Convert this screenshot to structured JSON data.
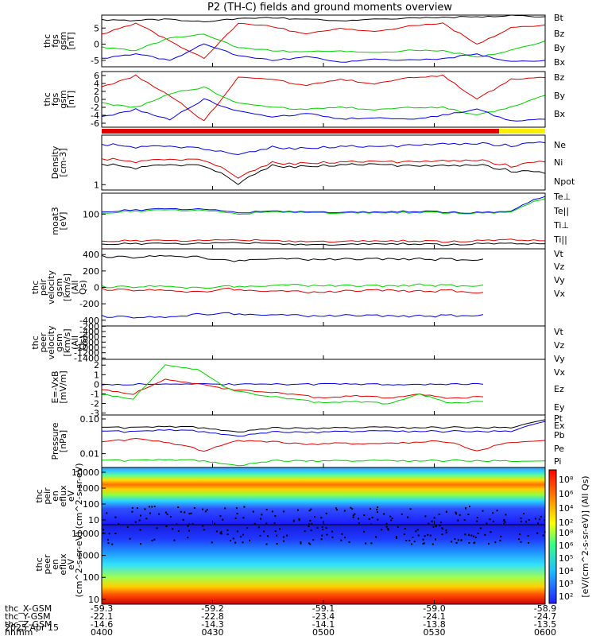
{
  "title": "P2 (TH-C) fields and ground moments overview",
  "x_ticks": [
    "0400",
    "0430",
    "0500",
    "0530",
    "0600"
  ],
  "ephemeris": [
    {
      "label": "thc_X-GSM",
      "values": [
        "-59.3",
        "-59.2",
        "-59.1",
        "-59.0",
        "-58.9"
      ]
    },
    {
      "label": "thc_Y-GSM",
      "values": [
        "-22.1",
        "-22.8",
        "-23.4",
        "-24.1",
        "-24.7"
      ]
    },
    {
      "label": "thc_Z-GSM",
      "values": [
        "-14.6",
        "-14.3",
        "-14.1",
        "-13.8",
        "-13.5"
      ]
    },
    {
      "label": "hhmm",
      "values": [
        "0400",
        "0430",
        "0500",
        "0530",
        "0600"
      ]
    }
  ],
  "date": "2025 Apr 15",
  "colors": {
    "black": "#000000",
    "red": "#e00000",
    "green": "#00d000",
    "blue": "#0000e0"
  },
  "chart_data": [
    {
      "type": "line",
      "ylabel": "thc fgs gsm [nT]",
      "ylim": [
        -7,
        9
      ],
      "yticks": [
        "5",
        "0",
        "-5"
      ],
      "ytick_values": [
        5,
        0,
        -5
      ],
      "legend": [
        {
          "name": "Bt",
          "color": "black"
        },
        {
          "name": "Bz",
          "color": "red"
        },
        {
          "name": "By",
          "color": "green"
        },
        {
          "name": "Bx",
          "color": "blue"
        }
      ],
      "series": [
        {
          "name": "Bt",
          "color": "black",
          "values": [
            7.5,
            7.3,
            7.8,
            6.8,
            8.0,
            8.2,
            7.6,
            7.3,
            7.9,
            8.0,
            8.3,
            8.5,
            8.8,
            8.5
          ]
        },
        {
          "name": "Bz",
          "color": "red",
          "values": [
            3.0,
            6.5,
            1.0,
            -4.5,
            6.5,
            5.5,
            3.0,
            5.0,
            4.0,
            5.5,
            6.5,
            0.0,
            5.0,
            6.0
          ]
        },
        {
          "name": "By",
          "color": "green",
          "values": [
            -1.0,
            -2.0,
            2.0,
            3.0,
            -1.0,
            -2.0,
            -2.5,
            -2.0,
            -2.5,
            -2.0,
            -2.0,
            -4.0,
            -2.0,
            1.0
          ]
        },
        {
          "name": "Bx",
          "color": "blue",
          "values": [
            -4.5,
            -3.0,
            -5.0,
            0.0,
            -3.5,
            -5.0,
            -4.0,
            -5.5,
            -4.5,
            -5.0,
            -4.5,
            -3.0,
            -5.5,
            -5.0
          ]
        }
      ]
    },
    {
      "type": "line",
      "ylabel": "thc fgs gsm [nT]",
      "ylim": [
        -7,
        7
      ],
      "yticks": [
        "6",
        "4",
        "2",
        "0",
        "-2",
        "-4",
        "-6"
      ],
      "ytick_values": [
        6,
        4,
        2,
        0,
        -2,
        -4,
        -6
      ],
      "legend": [
        {
          "name": "Bz",
          "color": "red"
        },
        {
          "name": "By",
          "color": "green"
        },
        {
          "name": "Bx",
          "color": "blue"
        }
      ],
      "series": [
        {
          "name": "Bz",
          "color": "red",
          "values": [
            3.0,
            6.0,
            1.0,
            -5.5,
            5.5,
            5.0,
            3.5,
            5.0,
            4.0,
            5.5,
            6.0,
            0.0,
            5.0,
            5.5
          ]
        },
        {
          "name": "By",
          "color": "green",
          "values": [
            -1.0,
            -2.0,
            1.5,
            3.0,
            -1.0,
            -2.0,
            -2.5,
            -2.0,
            -2.5,
            -2.0,
            -2.0,
            -4.0,
            -2.0,
            1.0
          ]
        },
        {
          "name": "Bx",
          "color": "blue",
          "values": [
            -4.5,
            -2.5,
            -5.0,
            0.0,
            -3.0,
            -4.5,
            -3.5,
            -5.0,
            -4.5,
            -5.0,
            -4.0,
            -2.5,
            -5.5,
            -5.0
          ]
        }
      ]
    },
    {
      "type": "line",
      "yscale": "log",
      "ylabel": "Density [cm-3]",
      "ylim": [
        0.8,
        8
      ],
      "yticks": [
        "1"
      ],
      "ytick_values": [
        1
      ],
      "legend": [
        {
          "name": "Ne",
          "color": "red"
        },
        {
          "name": "Ni",
          "color": "black"
        },
        {
          "name": "Npot",
          "color": "blue"
        }
      ],
      "series": [
        {
          "name": "Npot",
          "color": "blue",
          "values": [
            5.5,
            4.8,
            5.2,
            4.5,
            3.5,
            4.8,
            4.5,
            5.0,
            5.0,
            5.2,
            5.5,
            5.6,
            5.2,
            5.8
          ]
        },
        {
          "name": "Ne",
          "color": "red",
          "values": [
            3.0,
            2.6,
            3.0,
            2.8,
            1.3,
            2.5,
            2.4,
            2.6,
            2.7,
            2.6,
            2.7,
            2.8,
            2.2,
            2.6
          ]
        },
        {
          "name": "Ni",
          "color": "black",
          "values": [
            2.4,
            2.0,
            2.4,
            2.2,
            1.0,
            2.2,
            2.1,
            2.3,
            2.4,
            2.2,
            2.2,
            2.3,
            1.8,
            1.6
          ]
        }
      ]
    },
    {
      "type": "line",
      "yscale": "log",
      "ylabel": "moat3 [eV]",
      "ylim": [
        10,
        400
      ],
      "yticks": [
        "100"
      ],
      "ytick_values": [
        100
      ],
      "legend": [
        {
          "name": "Te⊥",
          "color": "red"
        },
        {
          "name": "Te||",
          "color": "black"
        },
        {
          "name": "Ti⊥",
          "color": "blue"
        },
        {
          "name": "Ti||",
          "color": "green"
        }
      ],
      "series": [
        {
          "name": "Ti⊥",
          "color": "blue",
          "values": [
            120,
            130,
            140,
            135,
            110,
            120,
            115,
            110,
            115,
            120,
            115,
            110,
            115,
            320
          ]
        },
        {
          "name": "Ti||",
          "color": "green",
          "values": [
            110,
            120,
            130,
            125,
            100,
            115,
            110,
            105,
            110,
            112,
            110,
            105,
            110,
            280
          ]
        },
        {
          "name": "Te⊥",
          "color": "red",
          "values": [
            17,
            17,
            17,
            17,
            18,
            17,
            16,
            16,
            17,
            17,
            16,
            17,
            18,
            17
          ]
        },
        {
          "name": "Te||",
          "color": "black",
          "values": [
            14,
            14,
            14,
            14,
            15,
            14,
            13,
            13,
            14,
            14,
            13,
            14,
            14,
            14
          ]
        }
      ]
    },
    {
      "type": "line",
      "ylabel": "thc peir velocity gsm [km/s] (All Qs)",
      "ylim": [
        -470,
        470
      ],
      "yticks": [
        "400",
        "200",
        "0",
        "-200",
        "-400"
      ],
      "ytick_values": [
        400,
        200,
        0,
        -200,
        -400
      ],
      "legend": [
        {
          "name": "Vt",
          "color": "black"
        },
        {
          "name": "Vz",
          "color": "red"
        },
        {
          "name": "Vy",
          "color": "green"
        },
        {
          "name": "Vx",
          "color": "blue"
        }
      ],
      "series": [
        {
          "name": "Vt",
          "color": "black",
          "values": [
            380,
            360,
            390,
            370,
            320,
            350,
            345,
            340,
            345,
            350,
            345,
            340,
            345
          ]
        },
        {
          "name": "Vz",
          "color": "red",
          "values": [
            -20,
            -40,
            -30,
            -60,
            -20,
            -40,
            -50,
            -60,
            -40,
            -30,
            -50,
            -40,
            -60
          ]
        },
        {
          "name": "Vy",
          "color": "green",
          "values": [
            10,
            0,
            20,
            -10,
            10,
            20,
            30,
            20,
            20,
            20,
            30,
            20,
            30
          ]
        },
        {
          "name": "Vx",
          "color": "blue",
          "values": [
            -350,
            -370,
            -360,
            -330,
            -320,
            -330,
            -340,
            -350,
            -340,
            -345,
            -350,
            -345,
            -330
          ]
        }
      ]
    },
    {
      "type": "line",
      "ylabel": "thc peer velocity gsm [km/s] (All Qs)",
      "ylim": [
        -1450,
        -190
      ],
      "yticks": [
        "-200",
        "-400",
        "-600",
        "-800",
        "-1000",
        "-1200",
        "-1400"
      ],
      "ytick_values": [
        -200,
        -400,
        -600,
        -800,
        -1000,
        -1200,
        -1400
      ],
      "legend": [
        {
          "name": "Vt",
          "color": "black"
        },
        {
          "name": "Vz",
          "color": "red"
        },
        {
          "name": "Vy",
          "color": "green"
        },
        {
          "name": "Vx",
          "color": "blue"
        }
      ],
      "series": []
    },
    {
      "type": "line",
      "ylabel": "E=-VxB [mV/m]",
      "ylim": [
        -3.2,
        2.6
      ],
      "yticks": [
        "2",
        "1",
        "0",
        "-1",
        "-2",
        "-3"
      ],
      "ytick_values": [
        2,
        1,
        0,
        -1,
        -2,
        -3
      ],
      "legend": [
        {
          "name": "Ez",
          "color": "red"
        },
        {
          "name": "Ey",
          "color": "green"
        },
        {
          "name": "Ex",
          "color": "blue"
        }
      ],
      "series": [
        {
          "name": "Ex",
          "color": "blue",
          "values": [
            0,
            0,
            0,
            0,
            0,
            0,
            0,
            0,
            0,
            0,
            0,
            0,
            0
          ]
        },
        {
          "name": "Ez",
          "color": "red",
          "values": [
            -0.5,
            -1.0,
            0.5,
            0.0,
            -0.5,
            -0.8,
            -1.0,
            -1.5,
            -1.2,
            -1.4,
            -1.0,
            -1.5,
            -1.3
          ]
        },
        {
          "name": "Ey",
          "color": "green",
          "values": [
            -1.0,
            -1.5,
            2.0,
            1.5,
            -0.5,
            -1.2,
            -1.5,
            -2.0,
            -1.8,
            -2.0,
            -1.0,
            -2.0,
            -1.8
          ]
        }
      ]
    },
    {
      "type": "line",
      "yscale": "log",
      "ylabel": "Pressure [nPa]",
      "ylim": [
        0.004,
        0.13
      ],
      "yticks": [
        "0.10",
        "0.01"
      ],
      "ytick_values": [
        0.1,
        0.01
      ],
      "legend": [
        {
          "name": "Pt",
          "color": "black"
        },
        {
          "name": "Pb",
          "color": "red"
        },
        {
          "name": "Pe",
          "color": "green"
        },
        {
          "name": "Pi",
          "color": "blue"
        }
      ],
      "series": [
        {
          "name": "Pt",
          "color": "black",
          "values": [
            0.058,
            0.055,
            0.06,
            0.057,
            0.042,
            0.055,
            0.052,
            0.055,
            0.058,
            0.056,
            0.057,
            0.058,
            0.055,
            0.095
          ]
        },
        {
          "name": "Pi",
          "color": "blue",
          "values": [
            0.045,
            0.042,
            0.048,
            0.044,
            0.032,
            0.042,
            0.04,
            0.043,
            0.045,
            0.044,
            0.044,
            0.045,
            0.043,
            0.085
          ]
        },
        {
          "name": "Pb",
          "color": "red",
          "values": [
            0.022,
            0.026,
            0.02,
            0.012,
            0.024,
            0.022,
            0.018,
            0.02,
            0.019,
            0.021,
            0.023,
            0.012,
            0.021,
            0.024
          ]
        },
        {
          "name": "Pe",
          "color": "green",
          "values": [
            0.0065,
            0.0062,
            0.0066,
            0.0064,
            0.0045,
            0.0062,
            0.006,
            0.0062,
            0.0063,
            0.0062,
            0.0063,
            0.0064,
            0.006,
            0.0062
          ]
        }
      ]
    },
    {
      "type": "heatmap",
      "yscale": "log",
      "ylabel": "thc peir en eflux eV (cm^2-s-sr-eV)",
      "ylim": [
        5,
        20000
      ],
      "yticks": [
        "10000",
        "1000",
        "100",
        "10"
      ],
      "ytick_values": [
        10000,
        1000,
        100,
        10
      ]
    },
    {
      "type": "heatmap",
      "yscale": "log",
      "ylabel": "thc peer en eflux eV (cm^2-s-sr-eV)",
      "ylim": [
        6,
        25000
      ],
      "yticks": [
        "10000",
        "1000",
        "100",
        "10"
      ],
      "ytick_values": [
        10000,
        1000,
        100,
        10
      ]
    }
  ],
  "colorbar": {
    "label": "[eV/(cm^2-s-sr-eV)] (All Qs)",
    "upper_ticks": [
      "10⁸",
      "10⁶",
      "10⁴",
      "10²"
    ],
    "lower_ticks": [
      "10⁸",
      "10⁶",
      "10⁵",
      "10⁴",
      "10³",
      "10²"
    ]
  }
}
